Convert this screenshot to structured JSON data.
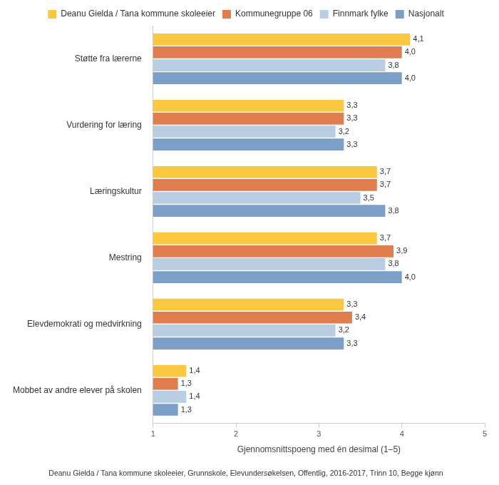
{
  "chart_data": {
    "type": "bar",
    "orientation": "horizontal",
    "categories": [
      "Støtte fra lærerne",
      "Vurdering for læring",
      "Læringskultur",
      "Mestring",
      "Elevdemokrati og medvirkning",
      "Mobbet av andre elever på skolen"
    ],
    "series": [
      {
        "name": "Deanu Gielda / Tana kommune skoleeier",
        "color": "#f9c83f",
        "values": [
          4.1,
          3.3,
          3.7,
          3.7,
          3.3,
          1.4
        ],
        "value_labels": [
          "4,1",
          "3,3",
          "3,7",
          "3,7",
          "3,3",
          "1,4"
        ]
      },
      {
        "name": "Kommunegruppe 06",
        "color": "#e07d4f",
        "values": [
          4.0,
          3.3,
          3.7,
          3.9,
          3.4,
          1.3
        ],
        "value_labels": [
          "4,0",
          "3,3",
          "3,7",
          "3,9",
          "3,4",
          "1,3"
        ]
      },
      {
        "name": "Finnmark fylke",
        "color": "#b9cde2",
        "values": [
          3.8,
          3.2,
          3.5,
          3.8,
          3.2,
          1.4
        ],
        "value_labels": [
          "3,8",
          "3,2",
          "3,5",
          "3,8",
          "3,2",
          "1,4"
        ]
      },
      {
        "name": "Nasjonalt",
        "color": "#7b9fc7",
        "values": [
          4.0,
          3.3,
          3.8,
          4.0,
          3.3,
          1.3
        ],
        "value_labels": [
          "4,0",
          "3,3",
          "3,8",
          "4,0",
          "3,3",
          "1,3"
        ]
      }
    ],
    "x_label": "Gjennomsnittspoeng med én desimal (1–5)",
    "caption": "Deanu Gielda / Tana kommune skoleeier, Grunnskole, Elevundersøkelsen, Offentlig, 2016-2017, Trinn 10, Begge kjønn",
    "xlim": [
      1,
      5
    ],
    "xticks": [
      1,
      2,
      3,
      4,
      5
    ],
    "grid": false,
    "legend": "top",
    "data_labels": true
  }
}
